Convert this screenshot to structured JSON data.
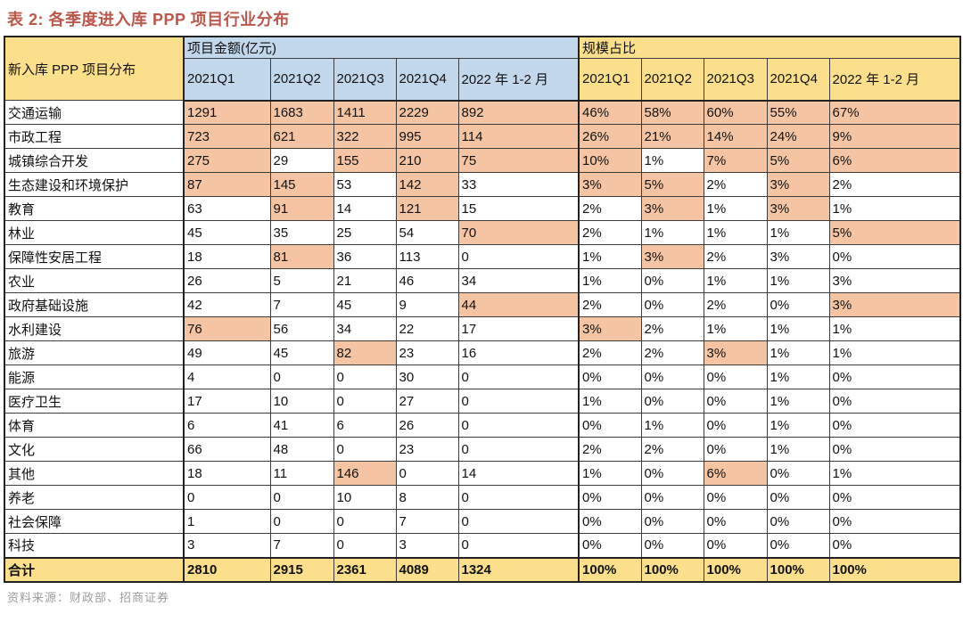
{
  "title": "表 2:  各季度进入库 PPP 项目行业分布",
  "source": "资料来源：财政部、招商证券",
  "colors": {
    "title_red": "#BD574B",
    "header_yellow": "#FBDF8B",
    "header_blue": "#C2D7EA",
    "highlight_salmon": "#F5C5A3",
    "total_yellow": "#FBDF8B",
    "source_gray": "#9C9C9C",
    "grid_line": "#3c3c3c"
  },
  "table": {
    "corner_header": "新入库 PPP 项目分布",
    "group_headers": {
      "amount": "项目金额(亿元)",
      "share": "规模占比"
    },
    "quarter_headers": [
      "2021Q1",
      "2021Q2",
      "2021Q3",
      "2021Q4",
      "2022 年 1-2 月"
    ],
    "rows": [
      {
        "label": "交通运输",
        "amounts": [
          "1291",
          "1683",
          "1411",
          "2229",
          "892"
        ],
        "amount_hl": [
          1,
          1,
          1,
          1,
          1
        ],
        "shares": [
          "46%",
          "58%",
          "60%",
          "55%",
          "67%"
        ],
        "share_hl": [
          1,
          1,
          1,
          1,
          1
        ]
      },
      {
        "label": "市政工程",
        "amounts": [
          "723",
          "621",
          "322",
          "995",
          "114"
        ],
        "amount_hl": [
          1,
          1,
          1,
          1,
          1
        ],
        "shares": [
          "26%",
          "21%",
          "14%",
          "24%",
          "9%"
        ],
        "share_hl": [
          1,
          1,
          1,
          1,
          1
        ]
      },
      {
        "label": "城镇综合开发",
        "amounts": [
          "275",
          "29",
          "155",
          "210",
          "75"
        ],
        "amount_hl": [
          1,
          0,
          1,
          1,
          1
        ],
        "shares": [
          "10%",
          "1%",
          "7%",
          "5%",
          "6%"
        ],
        "share_hl": [
          1,
          0,
          1,
          1,
          1
        ]
      },
      {
        "label": "生态建设和环境保护",
        "amounts": [
          "87",
          "145",
          "53",
          "142",
          "33"
        ],
        "amount_hl": [
          1,
          1,
          0,
          1,
          0
        ],
        "shares": [
          "3%",
          "5%",
          "2%",
          "3%",
          "2%"
        ],
        "share_hl": [
          1,
          1,
          0,
          1,
          0
        ]
      },
      {
        "label": "教育",
        "amounts": [
          "63",
          "91",
          "14",
          "121",
          "15"
        ],
        "amount_hl": [
          0,
          1,
          0,
          1,
          0
        ],
        "shares": [
          "2%",
          "3%",
          "1%",
          "3%",
          "1%"
        ],
        "share_hl": [
          0,
          1,
          0,
          1,
          0
        ]
      },
      {
        "label": "林业",
        "amounts": [
          "45",
          "35",
          "25",
          "54",
          "70"
        ],
        "amount_hl": [
          0,
          0,
          0,
          0,
          1
        ],
        "shares": [
          "2%",
          "1%",
          "1%",
          "1%",
          "5%"
        ],
        "share_hl": [
          0,
          0,
          0,
          0,
          1
        ]
      },
      {
        "label": "保障性安居工程",
        "amounts": [
          "18",
          "81",
          "36",
          "113",
          "0"
        ],
        "amount_hl": [
          0,
          1,
          0,
          0,
          0
        ],
        "shares": [
          "1%",
          "3%",
          "2%",
          "3%",
          "0%"
        ],
        "share_hl": [
          0,
          1,
          0,
          0,
          0
        ]
      },
      {
        "label": "农业",
        "amounts": [
          "26",
          "5",
          "21",
          "46",
          "34"
        ],
        "amount_hl": [
          0,
          0,
          0,
          0,
          0
        ],
        "shares": [
          "1%",
          "0%",
          "1%",
          "1%",
          "3%"
        ],
        "share_hl": [
          0,
          0,
          0,
          0,
          0
        ]
      },
      {
        "label": "政府基础设施",
        "amounts": [
          "42",
          "7",
          "45",
          "9",
          "44"
        ],
        "amount_hl": [
          0,
          0,
          0,
          0,
          1
        ],
        "shares": [
          "2%",
          "0%",
          "2%",
          "0%",
          "3%"
        ],
        "share_hl": [
          0,
          0,
          0,
          0,
          1
        ]
      },
      {
        "label": "水利建设",
        "amounts": [
          "76",
          "56",
          "34",
          "22",
          "17"
        ],
        "amount_hl": [
          1,
          0,
          0,
          0,
          0
        ],
        "shares": [
          "3%",
          "2%",
          "1%",
          "1%",
          "1%"
        ],
        "share_hl": [
          1,
          0,
          0,
          0,
          0
        ]
      },
      {
        "label": "旅游",
        "amounts": [
          "49",
          "45",
          "82",
          "23",
          "16"
        ],
        "amount_hl": [
          0,
          0,
          1,
          0,
          0
        ],
        "shares": [
          "2%",
          "2%",
          "3%",
          "1%",
          "1%"
        ],
        "share_hl": [
          0,
          0,
          1,
          0,
          0
        ]
      },
      {
        "label": "能源",
        "amounts": [
          "4",
          "0",
          "0",
          "30",
          "0"
        ],
        "amount_hl": [
          0,
          0,
          0,
          0,
          0
        ],
        "shares": [
          "0%",
          "0%",
          "0%",
          "1%",
          "0%"
        ],
        "share_hl": [
          0,
          0,
          0,
          0,
          0
        ]
      },
      {
        "label": "医疗卫生",
        "amounts": [
          "17",
          "10",
          "0",
          "27",
          "0"
        ],
        "amount_hl": [
          0,
          0,
          0,
          0,
          0
        ],
        "shares": [
          "1%",
          "0%",
          "0%",
          "1%",
          "0%"
        ],
        "share_hl": [
          0,
          0,
          0,
          0,
          0
        ]
      },
      {
        "label": "体育",
        "amounts": [
          "6",
          "41",
          "6",
          "26",
          "0"
        ],
        "amount_hl": [
          0,
          0,
          0,
          0,
          0
        ],
        "shares": [
          "0%",
          "1%",
          "0%",
          "1%",
          "0%"
        ],
        "share_hl": [
          0,
          0,
          0,
          0,
          0
        ]
      },
      {
        "label": "文化",
        "amounts": [
          "66",
          "48",
          "0",
          "23",
          "0"
        ],
        "amount_hl": [
          0,
          0,
          0,
          0,
          0
        ],
        "shares": [
          "2%",
          "2%",
          "0%",
          "1%",
          "0%"
        ],
        "share_hl": [
          0,
          0,
          0,
          0,
          0
        ]
      },
      {
        "label": "其他",
        "amounts": [
          "18",
          "11",
          "146",
          "0",
          "14"
        ],
        "amount_hl": [
          0,
          0,
          1,
          0,
          0
        ],
        "shares": [
          "1%",
          "0%",
          "6%",
          "0%",
          "1%"
        ],
        "share_hl": [
          0,
          0,
          1,
          0,
          0
        ]
      },
      {
        "label": "养老",
        "amounts": [
          "0",
          "0",
          "10",
          "8",
          "0"
        ],
        "amount_hl": [
          0,
          0,
          0,
          0,
          0
        ],
        "shares": [
          "0%",
          "0%",
          "0%",
          "0%",
          "0%"
        ],
        "share_hl": [
          0,
          0,
          0,
          0,
          0
        ]
      },
      {
        "label": "社会保障",
        "amounts": [
          "1",
          "0",
          "0",
          "7",
          "0"
        ],
        "amount_hl": [
          0,
          0,
          0,
          0,
          0
        ],
        "shares": [
          "0%",
          "0%",
          "0%",
          "0%",
          "0%"
        ],
        "share_hl": [
          0,
          0,
          0,
          0,
          0
        ]
      },
      {
        "label": "科技",
        "amounts": [
          "3",
          "7",
          "0",
          "3",
          "0"
        ],
        "amount_hl": [
          0,
          0,
          0,
          0,
          0
        ],
        "shares": [
          "0%",
          "0%",
          "0%",
          "0%",
          "0%"
        ],
        "share_hl": [
          0,
          0,
          0,
          0,
          0
        ]
      }
    ],
    "total_row": {
      "label": "合计",
      "amounts": [
        "2810",
        "2915",
        "2361",
        "4089",
        "1324"
      ],
      "shares": [
        "100%",
        "100%",
        "100%",
        "100%",
        "100%"
      ]
    }
  }
}
